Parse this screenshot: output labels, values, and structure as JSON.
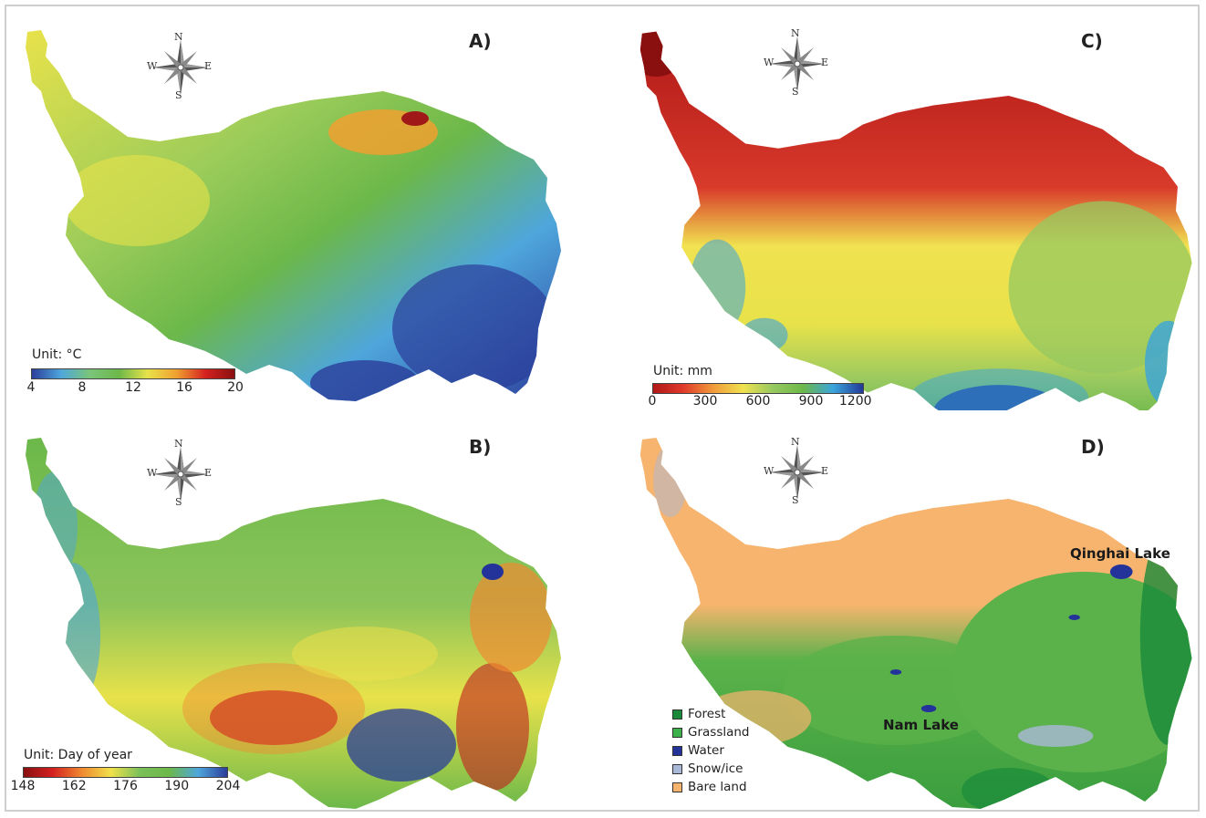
{
  "panels": {
    "a": {
      "label": "A)",
      "legend_title": "Unit: °C",
      "ticks": [
        "4",
        "8",
        "12",
        "16",
        "20"
      ],
      "ramp_colors": [
        "#2b3d9a",
        "#4ea6dc",
        "#7ac57a",
        "#6cb84a",
        "#e8e24a",
        "#f0a030",
        "#d42020",
        "#8a1010"
      ]
    },
    "b": {
      "label": "B)",
      "legend_title": "Unit: Day of year",
      "ticks": [
        "148",
        "162",
        "176",
        "190",
        "204"
      ],
      "ramp_colors": [
        "#8a1010",
        "#d42020",
        "#f08a30",
        "#f0e04a",
        "#7ac05a",
        "#6cb84a",
        "#4ea6dc",
        "#2b3d9a"
      ]
    },
    "c": {
      "label": "C)",
      "legend_title": "Unit: mm",
      "ticks": [
        "0",
        "300",
        "600",
        "900",
        "1200"
      ],
      "ramp_colors": [
        "#b01818",
        "#e03a2a",
        "#f09a3a",
        "#f0e250",
        "#96c860",
        "#6cb84a",
        "#3aa4dc",
        "#233a98"
      ]
    },
    "d": {
      "label": "D)",
      "land_cover_legend": [
        {
          "label": "Forest",
          "color": "#1a8a3a"
        },
        {
          "label": "Grassland",
          "color": "#3cb04a"
        },
        {
          "label": "Water",
          "color": "#23339a"
        },
        {
          "label": "Snow/ice",
          "color": "#aab8d8"
        },
        {
          "label": "Bare land",
          "color": "#f6b46e"
        }
      ],
      "lakes": {
        "qinghai": "Qinghai Lake",
        "nam": "Nam Lake"
      }
    }
  },
  "compass": {
    "n": "N",
    "s": "S",
    "e": "E",
    "w": "W"
  }
}
